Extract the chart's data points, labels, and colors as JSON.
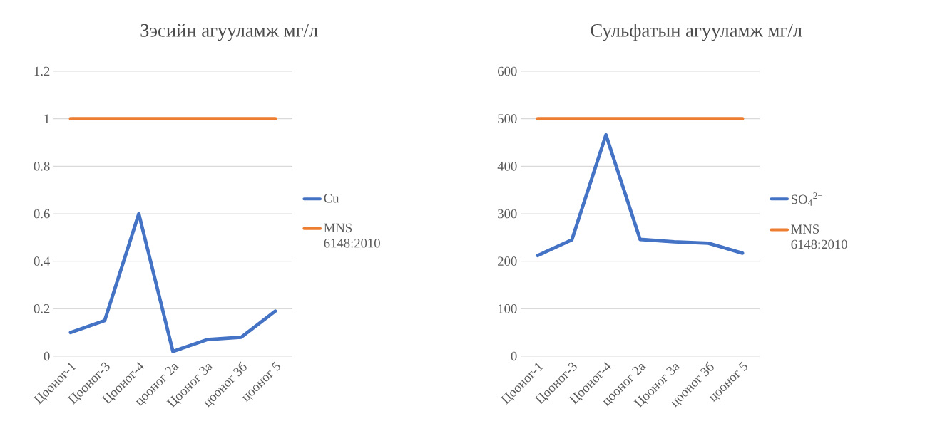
{
  "chart_data": [
    {
      "type": "line",
      "title": "Зэсийн агууламж мг/л",
      "categories": [
        "Цооног-1",
        "Цооног-3",
        "Цооног-4",
        "цооног 2а",
        "Цооног 3а",
        "цооног 3б",
        "цооног 5"
      ],
      "series": [
        {
          "name": "Cu",
          "color": "#4472c4",
          "values": [
            0.1,
            0.15,
            0.6,
            0.02,
            0.07,
            0.08,
            0.19
          ]
        },
        {
          "name": "MNS 6148:2010",
          "color": "#ed7d31",
          "values": [
            1,
            1,
            1,
            1,
            1,
            1,
            1
          ]
        }
      ],
      "ylim": [
        0,
        1.2
      ],
      "yticks": [
        0,
        0.2,
        0.4,
        0.6,
        0.8,
        1,
        1.2
      ],
      "grid": "y",
      "legend": "right",
      "marker": "none"
    },
    {
      "type": "line",
      "title": "Сульфатын агууламж мг/л",
      "categories": [
        "Цооног-1",
        "Цооног-3",
        "Цооног-4",
        "цооног 2а",
        "Цооног 3а",
        "цооног 3б",
        "цооног 5"
      ],
      "series": [
        {
          "name": "SO$_{4}$$^{2−}$",
          "color": "#4472c4",
          "values": [
            212,
            245,
            466,
            246,
            241,
            238,
            217
          ]
        },
        {
          "name": "MNS 6148:2010",
          "color": "#ed7d31",
          "values": [
            500,
            500,
            500,
            500,
            500,
            500,
            500
          ]
        }
      ],
      "ylim": [
        0,
        600
      ],
      "yticks": [
        0,
        100,
        200,
        300,
        400,
        500,
        600
      ],
      "grid": "y",
      "legend": "right",
      "marker": "none"
    }
  ]
}
